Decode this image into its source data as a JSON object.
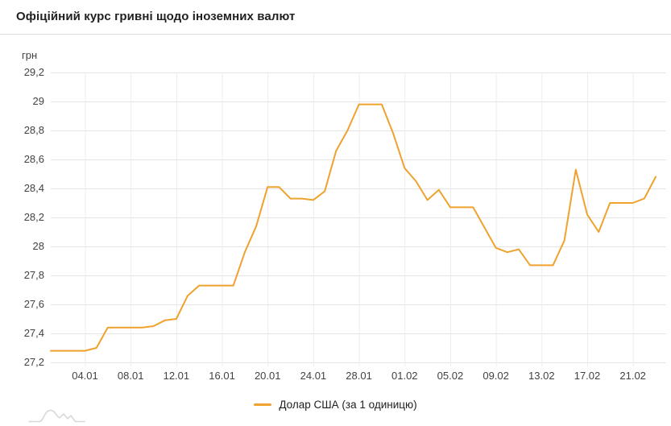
{
  "header": {
    "title": "Офіційний курс гривні щодо іноземних валют"
  },
  "colors": {
    "series_line": "#EFA22D",
    "grid_horizontal": "#e4e4e4",
    "grid_vertical": "#ececec",
    "axis_text": "#424242",
    "title_text": "#212121",
    "header_border": "#dcdcdc",
    "nav_icon_gray": "#d8d8d8"
  },
  "chart_data": {
    "type": "line",
    "title": "Офіційний курс гривні щодо іноземних валют",
    "y_unit": "грн",
    "xlabel": "",
    "ylabel": "грн",
    "ylim": [
      27.2,
      29.2
    ],
    "grid": true,
    "legend_position": "bottom-center",
    "y_ticks": [
      {
        "value": 29.2,
        "label": "29,2"
      },
      {
        "value": 29.0,
        "label": "29"
      },
      {
        "value": 28.8,
        "label": "28,8"
      },
      {
        "value": 28.6,
        "label": "28,6"
      },
      {
        "value": 28.4,
        "label": "28,4"
      },
      {
        "value": 28.2,
        "label": "28,2"
      },
      {
        "value": 28.0,
        "label": "28"
      },
      {
        "value": 27.8,
        "label": "27,8"
      },
      {
        "value": 27.6,
        "label": "27,6"
      },
      {
        "value": 27.4,
        "label": "27,4"
      },
      {
        "value": 27.2,
        "label": "27,2"
      }
    ],
    "x_ticks": [
      {
        "index": 3,
        "label": "04.01"
      },
      {
        "index": 7,
        "label": "08.01"
      },
      {
        "index": 11,
        "label": "12.01"
      },
      {
        "index": 15,
        "label": "16.01"
      },
      {
        "index": 19,
        "label": "20.01"
      },
      {
        "index": 23,
        "label": "24.01"
      },
      {
        "index": 27,
        "label": "28.01"
      },
      {
        "index": 31,
        "label": "01.02"
      },
      {
        "index": 35,
        "label": "05.02"
      },
      {
        "index": 39,
        "label": "09.02"
      },
      {
        "index": 43,
        "label": "13.02"
      },
      {
        "index": 47,
        "label": "17.02"
      },
      {
        "index": 51,
        "label": "21.02"
      }
    ],
    "x": [
      "01.01",
      "02.01",
      "03.01",
      "04.01",
      "05.01",
      "06.01",
      "07.01",
      "08.01",
      "09.01",
      "10.01",
      "11.01",
      "12.01",
      "13.01",
      "14.01",
      "15.01",
      "16.01",
      "17.01",
      "18.01",
      "19.01",
      "20.01",
      "21.01",
      "22.01",
      "23.01",
      "24.01",
      "25.01",
      "26.01",
      "27.01",
      "28.01",
      "29.01",
      "30.01",
      "31.01",
      "01.02",
      "02.02",
      "03.02",
      "04.02",
      "05.02",
      "06.02",
      "07.02",
      "08.02",
      "09.02",
      "10.02",
      "11.02",
      "12.02",
      "13.02",
      "14.02",
      "15.02",
      "16.02",
      "17.02",
      "18.02",
      "19.02",
      "20.02",
      "21.02",
      "22.02",
      "23.02"
    ],
    "series": [
      {
        "name": "Долар США (за 1 одиницю)",
        "color": "#EFA22D",
        "values": [
          27.28,
          27.28,
          27.28,
          27.28,
          27.3,
          27.44,
          27.44,
          27.44,
          27.44,
          27.45,
          27.49,
          27.5,
          27.66,
          27.73,
          27.73,
          27.73,
          27.73,
          27.96,
          28.14,
          28.41,
          28.41,
          28.33,
          28.33,
          28.32,
          28.38,
          28.66,
          28.8,
          28.98,
          28.98,
          28.98,
          28.78,
          28.54,
          28.45,
          28.32,
          28.39,
          28.27,
          28.27,
          28.27,
          28.13,
          27.99,
          27.96,
          27.98,
          27.87,
          27.87,
          27.87,
          28.04,
          28.53,
          28.22,
          28.1,
          28.3,
          28.3,
          28.3,
          28.33,
          28.48
        ]
      }
    ]
  }
}
